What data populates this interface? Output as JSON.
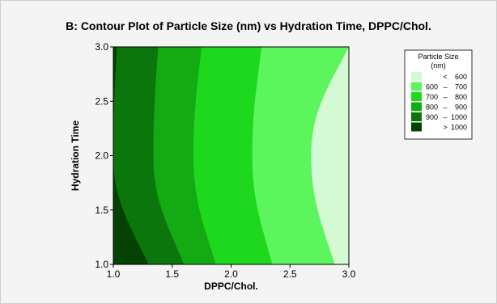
{
  "chart_data": {
    "type": "contour",
    "title": "B: Contour Plot of Particle Size (nm) vs Hydration  Time, DPPC/Chol.",
    "xlabel": "DPPC/Chol.",
    "ylabel": "Hydration  Time",
    "xlim": [
      1.0,
      3.0
    ],
    "ylim": [
      1.0,
      3.0
    ],
    "x_ticks": [
      "1.0",
      "1.5",
      "2.0",
      "2.5",
      "3.0"
    ],
    "y_ticks": [
      "1.0",
      "1.5",
      "2.0",
      "2.5",
      "3.0"
    ],
    "legend": {
      "title_line1": "Particle Size",
      "title_line2": "(nm)",
      "placement": "top-right",
      "entries": [
        {
          "lo": "",
          "dash": "<",
          "hi": "600",
          "color": "#d4fad4"
        },
        {
          "lo": "600",
          "dash": "–",
          "hi": "700",
          "color": "#5df55d"
        },
        {
          "lo": "700",
          "dash": "–",
          "hi": "800",
          "color": "#1ed81e"
        },
        {
          "lo": "800",
          "dash": "–",
          "hi": "900",
          "color": "#14aa14"
        },
        {
          "lo": "900",
          "dash": "–",
          "hi": "1000",
          "color": "#0b760b"
        },
        {
          "lo": "",
          "dash": ">",
          "hi": "1000",
          "color": "#034203"
        }
      ]
    },
    "contours": [
      {
        "level": 1000,
        "bottom_x": 1.3,
        "mid_x": 1.0,
        "top_x": 1.03
      },
      {
        "level": 900,
        "bottom_x": 1.6,
        "mid_x": 1.34,
        "top_x": 1.38
      },
      {
        "level": 800,
        "bottom_x": 1.87,
        "mid_x": 1.68,
        "top_x": 1.75
      },
      {
        "level": 700,
        "bottom_x": 2.35,
        "mid_x": 2.18,
        "top_x": 2.26
      },
      {
        "level": 600,
        "bottom_x": 2.88,
        "mid_x": 2.68,
        "top_x": 3.0
      }
    ]
  }
}
